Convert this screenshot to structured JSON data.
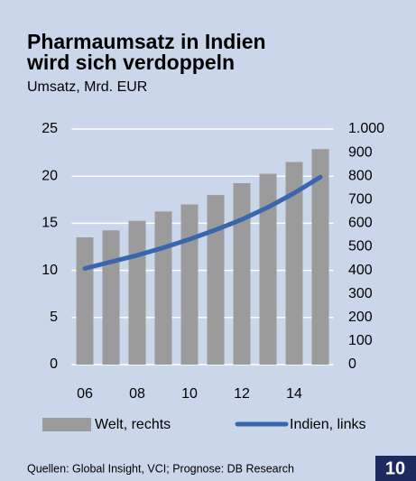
{
  "chart_data": {
    "type": "bar-line",
    "title_lines": [
      "Pharmaumsatz in Indien",
      "wird sich verdoppeln"
    ],
    "subtitle": "Umsatz, Mrd. EUR",
    "categories": [
      "06",
      null,
      "08",
      null,
      "10",
      null,
      "12",
      null,
      "14",
      null
    ],
    "series": [
      {
        "name": "Welt, rechts",
        "type": "bar",
        "axis": "y2",
        "color": "#9b9b9b",
        "values": [
          540,
          570,
          610,
          650,
          680,
          720,
          770,
          810,
          860,
          915
        ]
      },
      {
        "name": "Indien, links",
        "type": "line",
        "axis": "y",
        "color": "#3a66ae",
        "values": [
          10.2,
          10.9,
          11.6,
          12.4,
          13.3,
          14.3,
          15.4,
          16.7,
          18.2,
          19.9
        ]
      }
    ],
    "ylim": [
      0,
      25
    ],
    "yticks": [
      0,
      5,
      10,
      15,
      20,
      25
    ],
    "y2lim": [
      0,
      1000
    ],
    "y2ticks": [
      0,
      100,
      200,
      300,
      400,
      500,
      600,
      700,
      800,
      900,
      {
        "value": 1000,
        "label": "1.000"
      }
    ],
    "grid": true,
    "legend": "bottom",
    "source": "Quellen: Global Insight, VCI; Prognose: DB Research",
    "page_number": "10"
  }
}
